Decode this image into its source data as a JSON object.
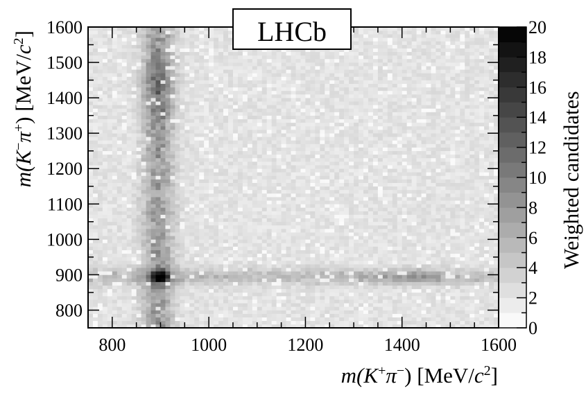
{
  "chart_data": {
    "type": "heatmap",
    "title": "",
    "badge": "LHCb",
    "xlabel": {
      "prefix": "m(",
      "k": "K",
      "k_sup": "+",
      "pi": "π",
      "pi_sup": "−",
      "suffix": ") [MeV/",
      "c": "c",
      "c_sup": "2",
      "close": "]"
    },
    "ylabel": {
      "prefix": "m(",
      "k": "K",
      "k_sup": "−",
      "pi": "π",
      "pi_sup": "+",
      "suffix": ") [MeV/",
      "c": "c",
      "c_sup": "2",
      "close": "]"
    },
    "colorbar_label": "Weighted candidates",
    "xlim": [
      750,
      1600
    ],
    "ylim": [
      750,
      1600
    ],
    "zlim": [
      0,
      20
    ],
    "x_ticks": [
      800,
      1000,
      1200,
      1400,
      1600
    ],
    "y_ticks": [
      800,
      900,
      1000,
      1100,
      1200,
      1300,
      1400,
      1500,
      1600
    ],
    "z_ticks": [
      0,
      2,
      4,
      6,
      8,
      10,
      12,
      14,
      16,
      18,
      20
    ],
    "colormap": "grayscale",
    "color_low": "#ffffff",
    "color_high": "#000000",
    "bins_x": 85,
    "bins_y": 85,
    "features": {
      "background_level": 2.2,
      "vertical_band": {
        "x_center": 895,
        "x_width": 22,
        "peak": 5.5,
        "upper_peak_y": 1430,
        "upper_peak": 3.5
      },
      "horizontal_band": {
        "y_center": 895,
        "y_width": 16,
        "peak": 3.2
      },
      "intersection_peak": {
        "x": 900,
        "y": 895,
        "value": 19
      },
      "secondary_blob": {
        "x": 1420,
        "y": 895,
        "value": 7
      }
    }
  }
}
